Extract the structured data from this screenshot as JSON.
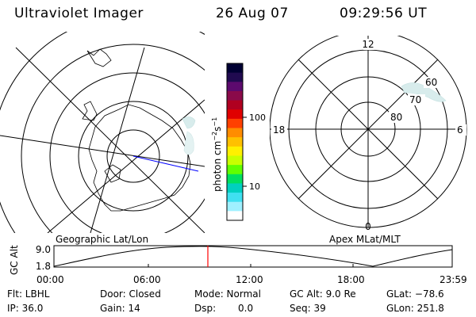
{
  "header": {
    "instrument": "Ultraviolet Imager",
    "date": "26 Aug 07",
    "time": "09:29:56 UT"
  },
  "left_map": {
    "label": "Geographic Lat/Lon"
  },
  "right_map": {
    "label": "Apex MLat/MLT",
    "mlt_labels": {
      "top": "12",
      "left": "18",
      "right": "6",
      "bottom": "0"
    },
    "mlat_labels": [
      "60",
      "70",
      "80"
    ]
  },
  "colorbar": {
    "unit": "photon cm",
    "unit_sup1": "−2",
    "unit_s": "s",
    "unit_sup2": "−1",
    "ticks": [
      "100",
      "10"
    ],
    "colors": [
      "#000033",
      "#200a50",
      "#5c0a6e",
      "#8a0a4a",
      "#b00020",
      "#e00000",
      "#ff4000",
      "#ff8c00",
      "#ffc000",
      "#fff000",
      "#c8ff00",
      "#60ff00",
      "#00e060",
      "#00d0c0",
      "#40e0f0",
      "#a0f0ff",
      "#ffffff"
    ]
  },
  "altitude_plot": {
    "ylabel": "GC Alt",
    "yticks": [
      "9.0",
      "1.8"
    ],
    "xticks": [
      "00:00",
      "06:00",
      "12:00",
      "18:00",
      "23:59"
    ],
    "marker_color": "#ff0000"
  },
  "info": {
    "flt": "Flt: LBHL",
    "ip": "IP: 36.0",
    "door": "Door: Closed",
    "gain": "Gain: 14",
    "mode": "Mode: Normal",
    "dsp_label": "Dsp:",
    "dsp_value": "0.0",
    "gcalt": "GC Alt: 9.0 Re",
    "seq": "Seq: 39",
    "glat": "GLat: −78.6",
    "glon": "GLon: 251.8"
  }
}
